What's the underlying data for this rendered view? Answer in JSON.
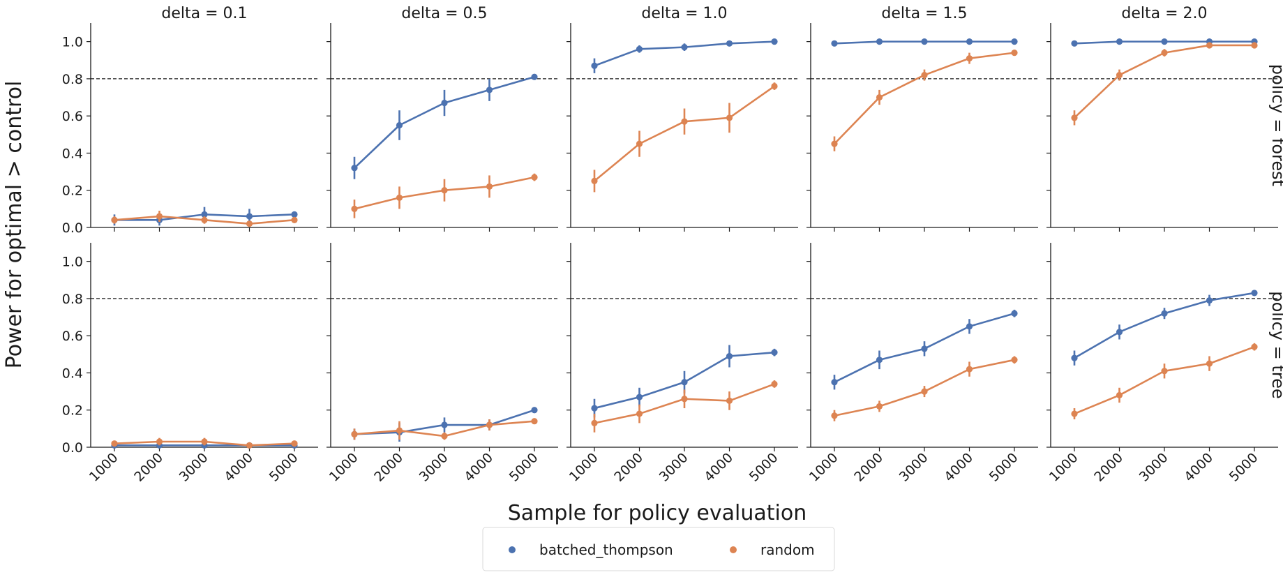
{
  "chart_data": {
    "type": "line",
    "x": [
      1000,
      2000,
      3000,
      4000,
      5000
    ],
    "xtick_labels": [
      "1000",
      "2000",
      "3000",
      "4000",
      "5000"
    ],
    "xlabel": "Sample for policy evaluation",
    "ylabel": "Power for optimal > control",
    "ylim": [
      0,
      1.1
    ],
    "yticks": [
      0.0,
      0.2,
      0.4,
      0.6,
      0.8,
      1.0
    ],
    "ytick_labels": [
      "0.0",
      "0.2",
      "0.4",
      "0.6",
      "0.8",
      "1.0"
    ],
    "reference_line": 0.8,
    "columns": [
      "delta = 0.1",
      "delta = 0.5",
      "delta = 1.0",
      "delta = 1.5",
      "delta = 2.0"
    ],
    "rows": [
      "policy = forest",
      "policy = tree"
    ],
    "legend": [
      {
        "name": "batched_thompson",
        "color": "#4c72b0"
      },
      {
        "name": "random",
        "color": "#dd8452"
      }
    ],
    "panels": [
      [
        {
          "batched_thompson": {
            "values": [
              0.04,
              0.04,
              0.07,
              0.06,
              0.07
            ],
            "err": [
              0.03,
              0.03,
              0.04,
              0.04,
              0.01
            ]
          },
          "random": {
            "values": [
              0.04,
              0.06,
              0.04,
              0.02,
              0.04
            ],
            "err": [
              0.02,
              0.03,
              0.02,
              0.01,
              0.01
            ]
          }
        },
        {
          "batched_thompson": {
            "values": [
              0.32,
              0.55,
              0.67,
              0.74,
              0.81
            ],
            "err": [
              0.06,
              0.08,
              0.07,
              0.06,
              0.01
            ]
          },
          "random": {
            "values": [
              0.1,
              0.16,
              0.2,
              0.22,
              0.27
            ],
            "err": [
              0.05,
              0.06,
              0.06,
              0.06,
              0.02
            ]
          }
        },
        {
          "batched_thompson": {
            "values": [
              0.87,
              0.96,
              0.97,
              0.99,
              1.0
            ],
            "err": [
              0.04,
              0.02,
              0.02,
              0.01,
              0.005
            ]
          },
          "random": {
            "values": [
              0.25,
              0.45,
              0.57,
              0.59,
              0.76
            ],
            "err": [
              0.06,
              0.07,
              0.07,
              0.08,
              0.02
            ]
          }
        },
        {
          "batched_thompson": {
            "values": [
              0.99,
              1.0,
              1.0,
              1.0,
              1.0
            ],
            "err": [
              0.005,
              0.003,
              0.003,
              0.002,
              0.002
            ]
          },
          "random": {
            "values": [
              0.45,
              0.7,
              0.82,
              0.91,
              0.94
            ],
            "err": [
              0.04,
              0.04,
              0.03,
              0.03,
              0.01
            ]
          }
        },
        {
          "batched_thompson": {
            "values": [
              0.99,
              1.0,
              1.0,
              1.0,
              1.0
            ],
            "err": [
              0.005,
              0.003,
              0.003,
              0.002,
              0.002
            ]
          },
          "random": {
            "values": [
              0.59,
              0.82,
              0.94,
              0.98,
              0.98
            ],
            "err": [
              0.04,
              0.03,
              0.02,
              0.01,
              0.005
            ]
          }
        }
      ],
      [
        {
          "batched_thompson": {
            "values": [
              0.01,
              0.01,
              0.01,
              0.01,
              0.01
            ],
            "err": [
              0.01,
              0.01,
              0.01,
              0.01,
              0.005
            ]
          },
          "random": {
            "values": [
              0.02,
              0.03,
              0.03,
              0.01,
              0.02
            ],
            "err": [
              0.01,
              0.02,
              0.02,
              0.01,
              0.01
            ]
          }
        },
        {
          "batched_thompson": {
            "values": [
              0.07,
              0.08,
              0.12,
              0.12,
              0.2
            ],
            "err": [
              0.03,
              0.05,
              0.04,
              0.03,
              0.01
            ]
          },
          "random": {
            "values": [
              0.07,
              0.09,
              0.06,
              0.12,
              0.14
            ],
            "err": [
              0.03,
              0.05,
              0.02,
              0.03,
              0.01
            ]
          }
        },
        {
          "batched_thompson": {
            "values": [
              0.21,
              0.27,
              0.35,
              0.49,
              0.51
            ],
            "err": [
              0.05,
              0.05,
              0.06,
              0.06,
              0.02
            ]
          },
          "random": {
            "values": [
              0.13,
              0.18,
              0.26,
              0.25,
              0.34
            ],
            "err": [
              0.05,
              0.05,
              0.05,
              0.05,
              0.02
            ]
          }
        },
        {
          "batched_thompson": {
            "values": [
              0.35,
              0.47,
              0.53,
              0.65,
              0.72
            ],
            "err": [
              0.04,
              0.05,
              0.04,
              0.04,
              0.02
            ]
          },
          "random": {
            "values": [
              0.17,
              0.22,
              0.3,
              0.42,
              0.47
            ],
            "err": [
              0.03,
              0.03,
              0.03,
              0.04,
              0.02
            ]
          }
        },
        {
          "batched_thompson": {
            "values": [
              0.48,
              0.62,
              0.72,
              0.79,
              0.83
            ],
            "err": [
              0.04,
              0.04,
              0.03,
              0.03,
              0.01
            ]
          },
          "random": {
            "values": [
              0.18,
              0.28,
              0.41,
              0.45,
              0.54
            ],
            "err": [
              0.03,
              0.04,
              0.04,
              0.04,
              0.02
            ]
          }
        }
      ]
    ]
  }
}
